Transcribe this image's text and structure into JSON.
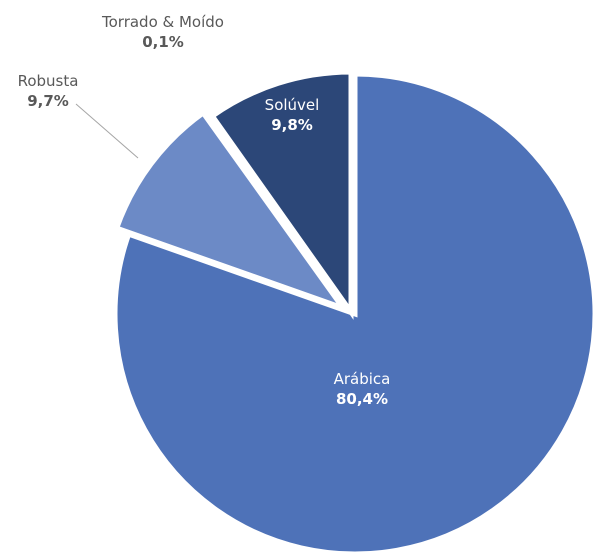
{
  "chart_data": {
    "type": "pie",
    "slices": [
      {
        "label": "Arábica",
        "value": 80.4,
        "display": "80,4%",
        "color": "#4e72b8",
        "label_color": "#ffffff"
      },
      {
        "label": "Robusta",
        "value": 9.7,
        "display": "9,7%",
        "color": "#6c8ac6",
        "label_color": "#595959"
      },
      {
        "label": "Torrado & Moído",
        "value": 0.1,
        "display": "0,1%",
        "color": "#3a5a9e",
        "label_color": "#595959"
      },
      {
        "label": "Solúvel",
        "value": 9.8,
        "display": "9,8%",
        "color": "#2c4778",
        "label_color": "#ffffff"
      }
    ],
    "exploded": [
      "Robusta",
      "Torrado & Moído",
      "Solúvel"
    ],
    "start_angle": "12 o'clock, clockwise",
    "legend": "none"
  }
}
